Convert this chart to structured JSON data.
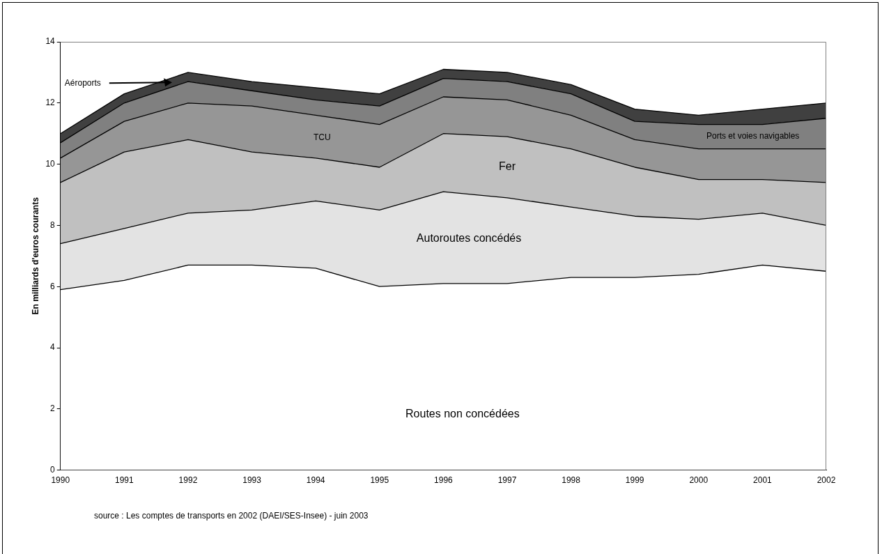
{
  "chart_data": {
    "type": "area",
    "stacked": true,
    "ylabel": "En milliards d'euros courants",
    "categories": [
      "1990",
      "1991",
      "1992",
      "1993",
      "1994",
      "1995",
      "1996",
      "1997",
      "1998",
      "1999",
      "2000",
      "2001",
      "2002"
    ],
    "ylim": [
      0,
      14
    ],
    "yticks": [
      0,
      2,
      4,
      6,
      8,
      10,
      12,
      14
    ],
    "grid": false,
    "legend": false,
    "series": [
      {
        "name": "Routes non concédées",
        "color": "#ffffff",
        "values": [
          5.9,
          6.2,
          6.7,
          6.7,
          6.6,
          6.0,
          6.1,
          6.1,
          6.3,
          6.3,
          6.4,
          6.7,
          6.5
        ]
      },
      {
        "name": "Autoroutes concédés",
        "color": "#e3e3e3",
        "values": [
          1.5,
          1.7,
          1.7,
          1.8,
          2.2,
          2.5,
          3.0,
          2.8,
          2.3,
          2.0,
          1.8,
          1.7,
          1.5
        ]
      },
      {
        "name": "Fer",
        "color": "#c0c0c0",
        "values": [
          2.0,
          2.5,
          2.4,
          1.9,
          1.4,
          1.4,
          1.9,
          2.0,
          1.9,
          1.6,
          1.3,
          1.1,
          1.4
        ]
      },
      {
        "name": "TCU",
        "color": "#969696",
        "values": [
          0.8,
          1.0,
          1.2,
          1.5,
          1.4,
          1.4,
          1.2,
          1.2,
          1.1,
          0.9,
          1.0,
          1.0,
          1.1
        ]
      },
      {
        "name": "Ports et voies navigables",
        "color": "#808080",
        "values": [
          0.5,
          0.6,
          0.7,
          0.5,
          0.5,
          0.6,
          0.6,
          0.6,
          0.7,
          0.6,
          0.8,
          0.8,
          1.0
        ]
      },
      {
        "name": "Aéroports",
        "color": "#404040",
        "values": [
          0.3,
          0.3,
          0.3,
          0.3,
          0.4,
          0.4,
          0.3,
          0.3,
          0.3,
          0.4,
          0.3,
          0.5,
          0.5
        ]
      }
    ],
    "annotations": [
      "source : Les comptes de transports en 2002 (DAEI/SES-Insee) - juin 2003"
    ]
  }
}
